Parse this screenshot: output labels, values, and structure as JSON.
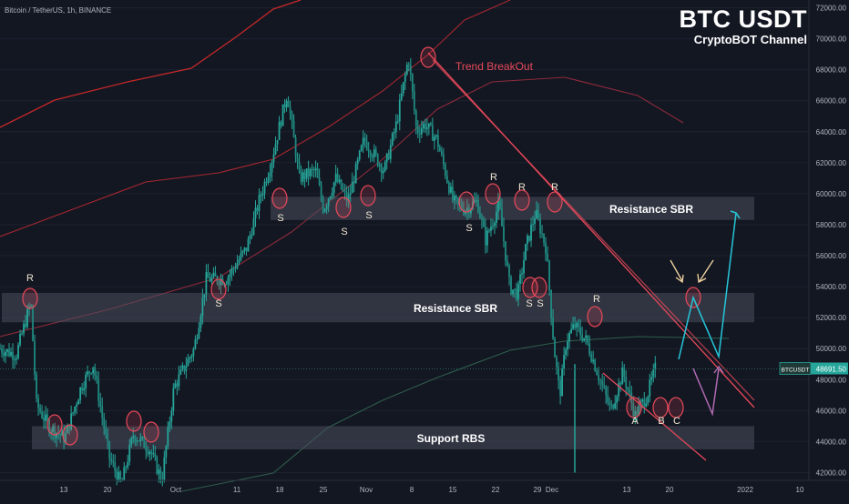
{
  "header": {
    "symbol_line": "Bitcoin / TetherUS, 1h, BINANCE",
    "brand_title": "BTC USDT",
    "brand_subtitle": "CryptoBOT Channel"
  },
  "price_tag": {
    "label": "BTCUSDT",
    "value": "48691.50",
    "color": "#26a69a"
  },
  "colors": {
    "bullish": "#26a69a",
    "bearish": "#ef5350",
    "zone": "#4a4f5c",
    "annotation": "#e8495a",
    "projection_up": "#26c6da",
    "projection_down": "#b06ab3",
    "arrow": "#f5d7a1"
  },
  "chart_data": {
    "type": "candlestick",
    "timeframe": "1h",
    "x_tick_labels": [
      "13",
      "20",
      "Oct",
      "11",
      "18",
      "25",
      "Nov",
      "8",
      "15",
      "22",
      "29",
      "Dec",
      "13",
      "20",
      "2022",
      "10"
    ],
    "y_tick_labels": [
      "42000.00",
      "44000.00",
      "46000.00",
      "48000.00",
      "50000.00",
      "52000.00",
      "54000.00",
      "56000.00",
      "58000.00",
      "60000.00",
      "62000.00",
      "64000.00",
      "66000.00",
      "68000.00",
      "70000.00",
      "72000.00"
    ],
    "ylim": [
      41500,
      72500
    ],
    "price_anchors": [
      {
        "x": 0,
        "y": 50000
      },
      {
        "x": 0.02,
        "y": 49600
      },
      {
        "x": 0.038,
        "y": 53000
      },
      {
        "x": 0.045,
        "y": 46400
      },
      {
        "x": 0.06,
        "y": 45000
      },
      {
        "x": 0.08,
        "y": 44200
      },
      {
        "x": 0.1,
        "y": 47500
      },
      {
        "x": 0.115,
        "y": 49000
      },
      {
        "x": 0.135,
        "y": 43000
      },
      {
        "x": 0.15,
        "y": 41200
      },
      {
        "x": 0.165,
        "y": 44500
      },
      {
        "x": 0.185,
        "y": 43500
      },
      {
        "x": 0.2,
        "y": 41500
      },
      {
        "x": 0.215,
        "y": 47500
      },
      {
        "x": 0.24,
        "y": 50000
      },
      {
        "x": 0.255,
        "y": 54500
      },
      {
        "x": 0.28,
        "y": 54500
      },
      {
        "x": 0.305,
        "y": 56500
      },
      {
        "x": 0.32,
        "y": 59500
      },
      {
        "x": 0.335,
        "y": 62000
      },
      {
        "x": 0.355,
        "y": 66500
      },
      {
        "x": 0.37,
        "y": 61000
      },
      {
        "x": 0.39,
        "y": 61500
      },
      {
        "x": 0.4,
        "y": 59000
      },
      {
        "x": 0.415,
        "y": 61000
      },
      {
        "x": 0.43,
        "y": 59500
      },
      {
        "x": 0.45,
        "y": 63500
      },
      {
        "x": 0.475,
        "y": 61500
      },
      {
        "x": 0.49,
        "y": 64500
      },
      {
        "x": 0.505,
        "y": 68800
      },
      {
        "x": 0.515,
        "y": 64000
      },
      {
        "x": 0.525,
        "y": 64500
      },
      {
        "x": 0.54,
        "y": 63500
      },
      {
        "x": 0.55,
        "y": 61500
      },
      {
        "x": 0.56,
        "y": 59500
      },
      {
        "x": 0.575,
        "y": 59000
      },
      {
        "x": 0.59,
        "y": 59500
      },
      {
        "x": 0.6,
        "y": 57000
      },
      {
        "x": 0.617,
        "y": 59300
      },
      {
        "x": 0.63,
        "y": 54000
      },
      {
        "x": 0.64,
        "y": 53500
      },
      {
        "x": 0.65,
        "y": 56500
      },
      {
        "x": 0.662,
        "y": 58800
      },
      {
        "x": 0.675,
        "y": 56500
      },
      {
        "x": 0.685,
        "y": 50000
      },
      {
        "x": 0.692,
        "y": 47000
      },
      {
        "x": 0.7,
        "y": 50500
      },
      {
        "x": 0.71,
        "y": 51500
      },
      {
        "x": 0.725,
        "y": 50500
      },
      {
        "x": 0.745,
        "y": 47500
      },
      {
        "x": 0.755,
        "y": 46000
      },
      {
        "x": 0.77,
        "y": 48500
      },
      {
        "x": 0.785,
        "y": 45700
      },
      {
        "x": 0.8,
        "y": 47000
      },
      {
        "x": 0.81,
        "y": 48700
      }
    ],
    "zones": [
      {
        "label": "Resistance SBR",
        "y_from": 58300,
        "y_to": 59800
      },
      {
        "label": "Resistance SBR",
        "y_from": 51700,
        "y_to": 53600
      },
      {
        "label": "Support RBS",
        "y_from": 43500,
        "y_to": 45000
      }
    ],
    "trendline_label": "Trend BreakOut",
    "point_labels": [
      "R",
      "S",
      "S",
      "S",
      "S",
      "S",
      "R",
      "R",
      "R",
      "S",
      "S",
      "R",
      "A",
      "B",
      "C"
    ]
  }
}
